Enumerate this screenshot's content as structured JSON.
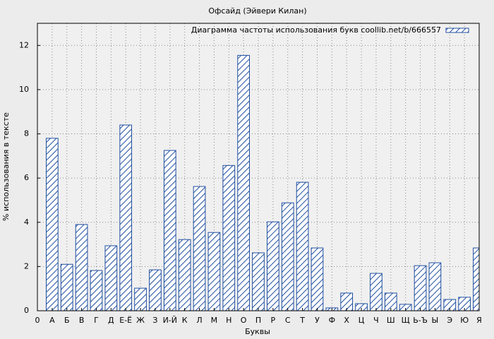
{
  "chart_data": {
    "type": "bar",
    "title": "Офсайд (Эйвери Килан)",
    "xlabel": "Буквы",
    "ylabel": "% использования в тексте",
    "series": [
      {
        "name": "Диаграмма частоты использования букв coollib.net/b/666557",
        "color": "#1f4ea0",
        "x": [
          1,
          2,
          3,
          4,
          5,
          6,
          7,
          8,
          9,
          10,
          11,
          12,
          13,
          14,
          15,
          16,
          17,
          18,
          19,
          20,
          21,
          22,
          23,
          24,
          25,
          26,
          27,
          28,
          29,
          30
        ],
        "values": [
          7.8,
          2.1,
          3.9,
          1.82,
          2.94,
          8.4,
          1.02,
          1.85,
          7.25,
          3.22,
          5.62,
          3.54,
          6.57,
          11.55,
          2.62,
          4.02,
          4.88,
          5.81,
          2.84,
          0.13,
          0.8,
          0.32,
          1.69,
          0.8,
          0.29,
          2.04,
          2.17,
          0.51,
          0.61,
          2.84
        ]
      }
    ],
    "xlim": [
      0,
      30
    ],
    "xticks": [
      0,
      {
        "value": 1,
        "label": "А"
      },
      {
        "value": 2,
        "label": "Б"
      },
      {
        "value": 3,
        "label": "В"
      },
      {
        "value": 4,
        "label": "Г"
      },
      {
        "value": 5,
        "label": "Д"
      },
      {
        "value": 6,
        "label": "Е-Ё"
      },
      {
        "value": 7,
        "label": "Ж"
      },
      {
        "value": 8,
        "label": "З"
      },
      {
        "value": 9,
        "label": "И-Й"
      },
      {
        "value": 10,
        "label": "К"
      },
      {
        "value": 11,
        "label": "Л"
      },
      {
        "value": 12,
        "label": "М"
      },
      {
        "value": 13,
        "label": "Н"
      },
      {
        "value": 14,
        "label": "О"
      },
      {
        "value": 15,
        "label": "П"
      },
      {
        "value": 16,
        "label": "Р"
      },
      {
        "value": 17,
        "label": "С"
      },
      {
        "value": 18,
        "label": "Т"
      },
      {
        "value": 19,
        "label": "У"
      },
      {
        "value": 20,
        "label": "Ф"
      },
      {
        "value": 21,
        "label": "Х"
      },
      {
        "value": 22,
        "label": "Ц"
      },
      {
        "value": 23,
        "label": "Ч"
      },
      {
        "value": 24,
        "label": "Ш"
      },
      {
        "value": 25,
        "label": "Щ"
      },
      {
        "value": 26,
        "label": "Ь-Ъ"
      },
      {
        "value": 27,
        "label": "Ы"
      },
      {
        "value": 28,
        "label": "Э"
      },
      {
        "value": 29,
        "label": "Ю"
      },
      {
        "value": 30,
        "label": "Я"
      }
    ],
    "ylim": [
      0,
      13
    ],
    "yticks": [
      0,
      2,
      4,
      6,
      8,
      10,
      12
    ],
    "grid": true,
    "legend": "top-right"
  }
}
